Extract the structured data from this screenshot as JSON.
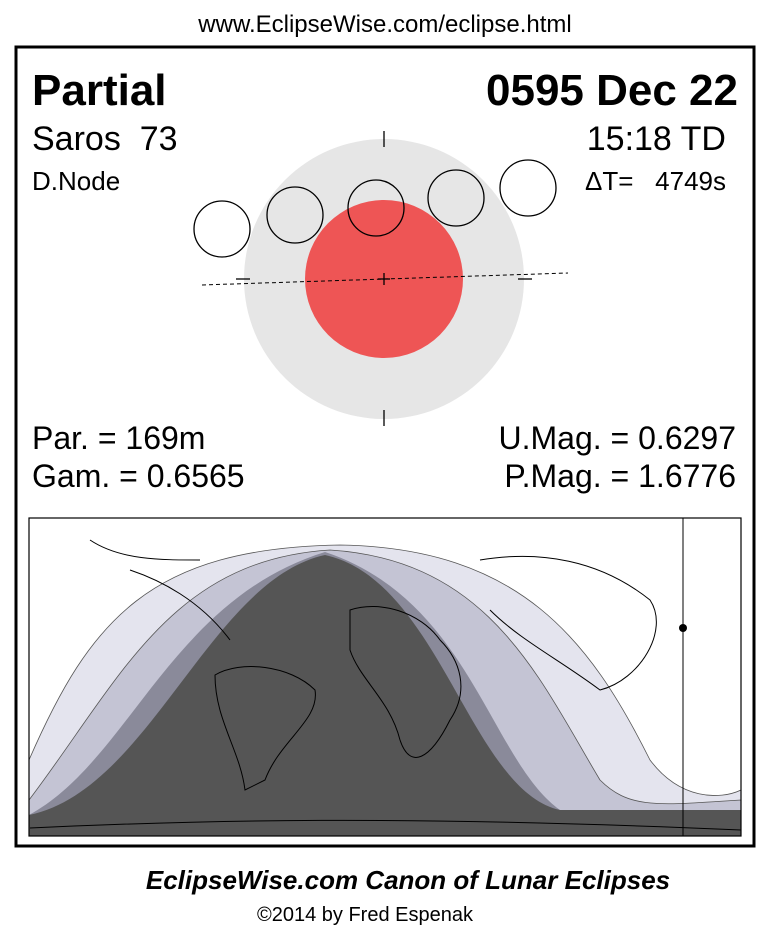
{
  "header": {
    "url": "www.EclipseWise.com/eclipse.html"
  },
  "panel": {
    "type_label": "Partial",
    "date": "0595 Dec 22",
    "saros": "Saros  73",
    "time": "15:18 TD",
    "node": "D.Node",
    "delta_t": "ΔT=   4749s",
    "stats": {
      "par": "Par. = 169m",
      "gam": "Gam. = 0.6565",
      "umag": "U.Mag. = 0.6297",
      "pmag": "P.Mag. = 1.6776"
    }
  },
  "footer": {
    "title": "EclipseWise.com Canon of Lunar Eclipses",
    "credit": "©2014 by Fred Espenak"
  }
}
